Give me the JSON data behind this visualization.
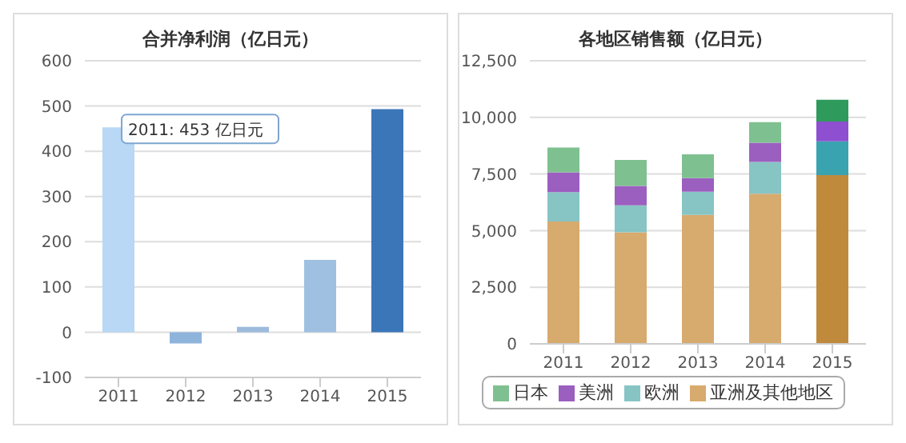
{
  "chart_data": [
    {
      "type": "bar",
      "title": "合并净利润（亿日元）",
      "categories": [
        "2011",
        "2012",
        "2013",
        "2014",
        "2015"
      ],
      "values": [
        453,
        -25,
        12,
        160,
        493
      ],
      "colors": [
        "#b8d8f5",
        "#8fb4dc",
        "#9dbbdc",
        "#9fc0e0",
        "#3b76b8"
      ],
      "ylim": [
        -100,
        600
      ],
      "yticks": [
        -100,
        0,
        100,
        200,
        300,
        400,
        500,
        600
      ],
      "grid": "y",
      "legend": false,
      "annotations": [
        {
          "text": "2011: 453 亿日元",
          "x": "2011",
          "y": 453
        }
      ]
    },
    {
      "type": "bar",
      "title": "各地区销售额（亿日元）",
      "categories": [
        "2011",
        "2012",
        "2013",
        "2014",
        "2015"
      ],
      "stacked": true,
      "series": [
        {
          "name": "亚洲及其他地区",
          "color": "#d7aa6e",
          "colors": [
            "#d7aa6e",
            "#d7aa6e",
            "#d7aa6e",
            "#d7aa6e",
            "#c08a3c"
          ],
          "values": [
            5400,
            4930,
            5690,
            6630,
            7450
          ]
        },
        {
          "name": "欧洲",
          "color": "#87c4c4",
          "colors": [
            "#87c4c4",
            "#87c4c4",
            "#87c4c4",
            "#87c4c4",
            "#3aa3b0"
          ],
          "values": [
            1300,
            1190,
            1030,
            1400,
            1490
          ]
        },
        {
          "name": "美洲",
          "color": "#9b5fc0",
          "colors": [
            "#9b5fc0",
            "#9b5fc0",
            "#9b5fc0",
            "#9b5fc0",
            "#8e4fd0"
          ],
          "values": [
            870,
            850,
            600,
            850,
            880
          ]
        },
        {
          "name": "日本",
          "color": "#7fc090",
          "colors": [
            "#7fc090",
            "#7fc090",
            "#7fc090",
            "#7fc090",
            "#2e9a5c"
          ],
          "values": [
            1100,
            1150,
            1050,
            910,
            960
          ]
        }
      ],
      "ylim": [
        0,
        12500
      ],
      "yticks": [
        0,
        {
          "value": 2500,
          "label": "2,500"
        },
        {
          "value": 5000,
          "label": "5,000"
        },
        {
          "value": 7500,
          "label": "7,500"
        },
        {
          "value": 10000,
          "label": "10,000"
        },
        {
          "value": 12500,
          "label": "12,500"
        }
      ],
      "grid": "y",
      "legend": "bottom"
    }
  ]
}
